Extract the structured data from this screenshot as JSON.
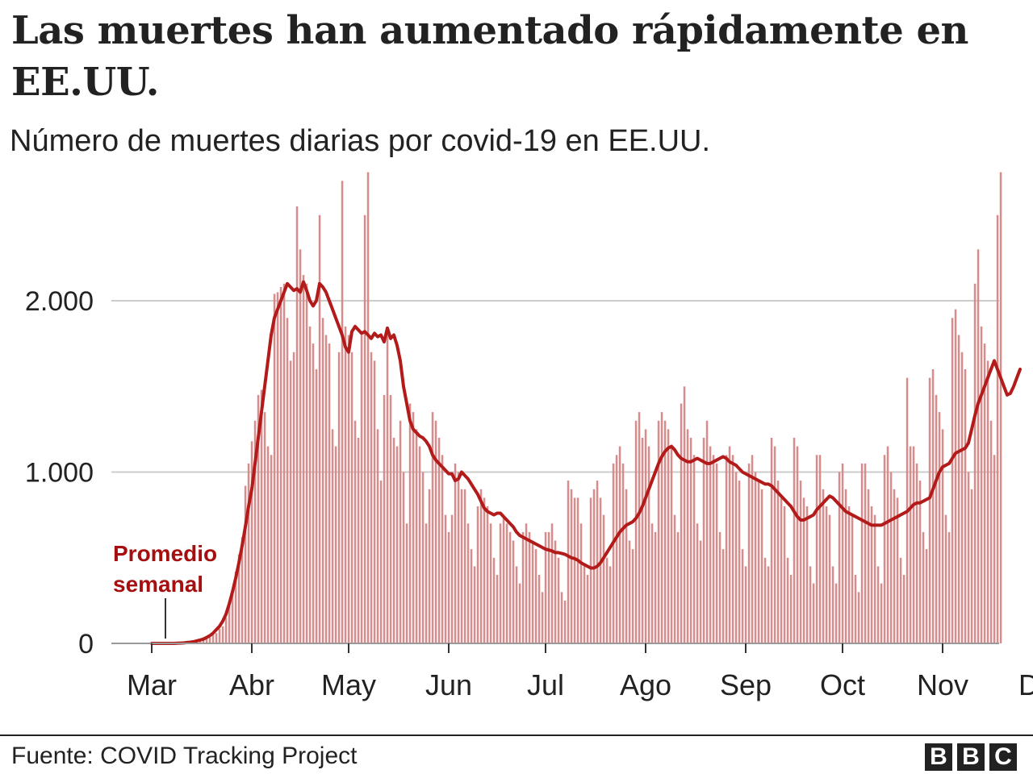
{
  "header": {
    "title": "Las muertes han aumentado rápidamente en EE.UU.",
    "subtitle": "Número de muertes diarias por covid-19 en EE.UU."
  },
  "footer": {
    "source": "Fuente: COVID Tracking Project",
    "logo_letters": [
      "B",
      "B",
      "C"
    ]
  },
  "colors": {
    "bar": "#d98b8b",
    "line": "#b31b1b",
    "annotation": "#a50f0f",
    "grid": "#cccccc",
    "text": "#222222"
  },
  "chart_data": {
    "type": "bar",
    "title": "Las muertes han aumentado rápidamente en EE.UU.",
    "subtitle": "Número de muertes diarias por covid-19 en EE.UU.",
    "ylim": [
      0,
      2800
    ],
    "yticks": [
      0,
      1000,
      2000
    ],
    "ytick_labels": [
      "0",
      "1.000",
      "2.000"
    ],
    "xticks": [
      {
        "label": "Mar",
        "day": 0
      },
      {
        "label": "Abr",
        "day": 31
      },
      {
        "label": "May",
        "day": 61
      },
      {
        "label": "Jun",
        "day": 92
      },
      {
        "label": "Jul",
        "day": 122
      },
      {
        "label": "Ago",
        "day": 153
      },
      {
        "label": "Sep",
        "day": 184
      },
      {
        "label": "Oct",
        "day": 214
      },
      {
        "label": "Nov",
        "day": 245
      },
      {
        "label": "Dic",
        "day": 275
      }
    ],
    "grid": true,
    "annotation": {
      "lines": [
        "Promedio",
        "semanal"
      ]
    },
    "series": [
      {
        "name": "Muertes diarias",
        "type": "bar",
        "values": [
          0,
          0,
          0,
          0,
          0,
          0,
          0,
          0,
          1,
          2,
          3,
          4,
          5,
          8,
          12,
          15,
          20,
          28,
          35,
          50,
          60,
          85,
          100,
          150,
          230,
          300,
          420,
          520,
          620,
          920,
          1050,
          1180,
          1300,
          1450,
          1480,
          1350,
          1150,
          1100,
          2040,
          2050,
          2080,
          2100,
          1900,
          1650,
          1700,
          2550,
          2300,
          2150,
          2100,
          1850,
          1750,
          1600,
          2500,
          1900,
          1800,
          1750,
          1250,
          1150,
          1700,
          2700,
          1850,
          1800,
          1700,
          1300,
          1200,
          1800,
          2500,
          2750,
          1700,
          1650,
          1250,
          950,
          1450,
          1850,
          1450,
          1200,
          1150,
          1300,
          1000,
          700,
          1400,
          1350,
          1250,
          1150,
          1000,
          700,
          900,
          1350,
          1300,
          1200,
          1100,
          750,
          650,
          750,
          1050,
          1000,
          900,
          900,
          700,
          550,
          450,
          800,
          900,
          850,
          800,
          700,
          500,
          400,
          700,
          750,
          700,
          650,
          600,
          450,
          350,
          650,
          700,
          650,
          600,
          550,
          400,
          300,
          650,
          650,
          700,
          600,
          500,
          300,
          250,
          950,
          900,
          850,
          850,
          700,
          450,
          400,
          850,
          900,
          950,
          850,
          750,
          500,
          450,
          1050,
          1100,
          1150,
          1050,
          900,
          600,
          550,
          1300,
          1350,
          1200,
          1250,
          1150,
          700,
          650,
          1300,
          1350,
          1300,
          1250,
          1150,
          750,
          650,
          1400,
          1500,
          1250,
          1200,
          1100,
          700,
          600,
          1200,
          1300,
          1150,
          1100,
          1050,
          650,
          550,
          1100,
          1150,
          1100,
          1000,
          950,
          550,
          450,
          1050,
          1100,
          1000,
          950,
          900,
          500,
          450,
          1200,
          1150,
          950,
          850,
          800,
          500,
          400,
          1200,
          1150,
          950,
          850,
          800,
          450,
          350,
          1100,
          1100,
          900,
          800,
          750,
          450,
          350,
          1000,
          1050,
          900,
          800,
          750,
          400,
          300,
          1050,
          1050,
          900,
          800,
          750,
          450,
          350,
          1100,
          1150,
          1000,
          900,
          850,
          500,
          400,
          1550,
          1150,
          1150,
          1050,
          950,
          650,
          550,
          1550,
          1600,
          1450,
          1350,
          1250,
          750,
          650,
          1900,
          1950,
          1800,
          1700,
          1600,
          1000,
          900,
          2100,
          2300,
          1850,
          1750,
          1650,
          1300,
          1100,
          2500,
          2750
        ]
      },
      {
        "name": "Promedio semanal",
        "type": "line",
        "values": [
          0,
          0,
          0,
          0,
          0,
          0,
          0,
          0,
          1,
          2,
          3,
          5,
          7,
          10,
          15,
          20,
          25,
          35,
          45,
          60,
          80,
          100,
          130,
          170,
          230,
          300,
          380,
          470,
          570,
          680,
          800,
          900,
          1050,
          1200,
          1350,
          1500,
          1650,
          1800,
          1900,
          1950,
          2000,
          2050,
          2100,
          2080,
          2060,
          2070,
          2050,
          2110,
          2060,
          2000,
          1970,
          2000,
          2100,
          2080,
          2050,
          2000,
          1950,
          1900,
          1850,
          1800,
          1730,
          1700,
          1820,
          1850,
          1830,
          1810,
          1820,
          1800,
          1780,
          1810,
          1790,
          1800,
          1760,
          1840,
          1780,
          1800,
          1740,
          1650,
          1500,
          1400,
          1300,
          1250,
          1230,
          1210,
          1200,
          1180,
          1150,
          1100,
          1070,
          1050,
          1030,
          1010,
          990,
          990,
          950,
          960,
          1000,
          980,
          960,
          930,
          900,
          870,
          830,
          790,
          770,
          760,
          750,
          760,
          760,
          740,
          720,
          700,
          680,
          650,
          630,
          620,
          610,
          600,
          590,
          580,
          570,
          560,
          550,
          545,
          540,
          530,
          530,
          525,
          520,
          510,
          500,
          495,
          485,
          470,
          460,
          450,
          440,
          440,
          450,
          470,
          500,
          530,
          560,
          590,
          620,
          650,
          670,
          690,
          700,
          710,
          730,
          760,
          800,
          850,
          900,
          950,
          1000,
          1050,
          1090,
          1120,
          1140,
          1150,
          1130,
          1100,
          1080,
          1070,
          1060,
          1060,
          1070,
          1080,
          1070,
          1060,
          1050,
          1050,
          1060,
          1070,
          1080,
          1090,
          1080,
          1060,
          1050,
          1040,
          1020,
          1000,
          990,
          980,
          970,
          960,
          950,
          940,
          930,
          930,
          920,
          900,
          880,
          860,
          840,
          820,
          800,
          770,
          740,
          720,
          720,
          730,
          740,
          750,
          780,
          800,
          820,
          840,
          860,
          850,
          830,
          810,
          790,
          770,
          760,
          750,
          740,
          730,
          720,
          710,
          700,
          690,
          690,
          690,
          690,
          700,
          710,
          720,
          730,
          740,
          750,
          760,
          770,
          790,
          810,
          820,
          820,
          830,
          840,
          850,
          900,
          950,
          1000,
          1030,
          1040,
          1050,
          1080,
          1110,
          1120,
          1130,
          1140,
          1170,
          1250,
          1330,
          1400,
          1450,
          1500,
          1550,
          1600,
          1650,
          1600,
          1550,
          1500,
          1450,
          1460,
          1500,
          1550,
          1600
        ]
      }
    ]
  }
}
